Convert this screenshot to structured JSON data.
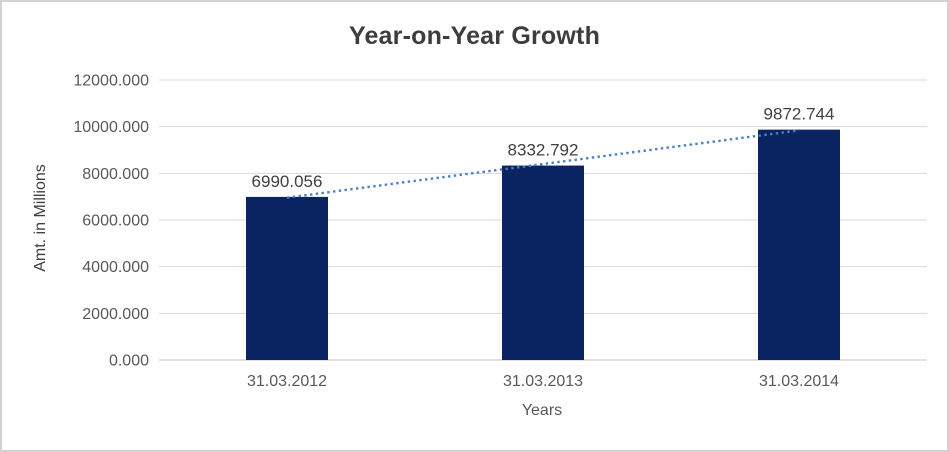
{
  "chart_data": {
    "type": "bar",
    "title": "Year-on-Year Growth",
    "categories": [
      "31.03.2012",
      "31.03.2013",
      "31.03.2014"
    ],
    "values": [
      6990.056,
      8332.792,
      9872.744
    ],
    "data_labels": [
      "6990.056",
      "8332.792",
      "9872.744"
    ],
    "xlabel": "Years",
    "ylabel": "Amt. in Millions",
    "ylim": [
      0,
      12000
    ],
    "ytick_step": 2000,
    "ytick_labels": [
      "0.000",
      "2000.000",
      "4000.000",
      "6000.000",
      "8000.000",
      "10000.000",
      "12000.000"
    ],
    "ytick_format_decimals": 3,
    "grid": true,
    "legend": "none",
    "trendline": {
      "type": "linear",
      "style": "dotted",
      "color": "#4d7ec1"
    },
    "colors": {
      "bar": "#0a2462",
      "gridline": "#d9d9d9",
      "axis_line": "#c3c3c3",
      "title_text": "#3d3d3d",
      "data_label_text": "#404040",
      "tick_text": "#595959",
      "background": "#ffffff",
      "border": "#d2d2d2"
    }
  }
}
